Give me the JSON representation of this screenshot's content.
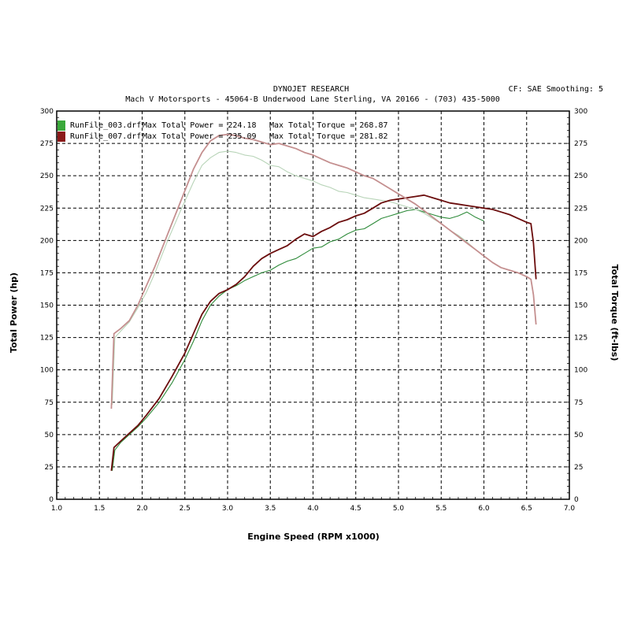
{
  "header": {
    "title": "DYNOJET RESEARCH",
    "subtitle": "Mach V Motorsports - 45064-B Underwood Lane  Sterling, VA  20166 - (703) 435-5000",
    "settings": "CF: SAE  Smoothing: 5"
  },
  "legend": [
    {
      "file": "RunFile_003.drf",
      "power_label": "Max Total Power = 224.18",
      "torque_label": "Max Total Torque = 268.87",
      "color": "#2e8b3a",
      "swatch": "#3aa83a"
    },
    {
      "file": "RunFile_007.drf",
      "power_label": "Max Total Power = 235.09",
      "torque_label": "Max Total Torque = 281.82",
      "color": "#6b0d0d",
      "swatch": "#8b1a1a"
    }
  ],
  "colors": {
    "run003_power": "#2e8b3a",
    "run003_torque": "#b8d4b8",
    "run007_power": "#6b0d0d",
    "run007_torque": "#c48f8f",
    "grid": "#000000",
    "plot_border": "#000000"
  },
  "chart_data": {
    "type": "line",
    "title": "DYNOJET RESEARCH",
    "xlabel": "Engine Speed (RPM x1000)",
    "ylabel": "Total Power (hp)",
    "y2label": "Total Torque (ft-lbs)",
    "xlim": [
      1.0,
      7.0
    ],
    "ylim": [
      0,
      300
    ],
    "y2lim": [
      0,
      300
    ],
    "x_ticks": [
      "1.0",
      "1.5",
      "2.0",
      "2.5",
      "3.0",
      "3.5",
      "4.0",
      "4.5",
      "5.0",
      "5.5",
      "6.0",
      "6.5",
      "7.0"
    ],
    "y_ticks": [
      "0",
      "25",
      "50",
      "75",
      "100",
      "125",
      "150",
      "175",
      "200",
      "225",
      "250",
      "275",
      "300"
    ],
    "grid": true,
    "legend_position": "top-left",
    "series": [
      {
        "name": "RunFile_003.drf Max Total Power = 224.18",
        "axis": "left",
        "points": [
          [
            1.65,
            22
          ],
          [
            1.68,
            38
          ],
          [
            1.75,
            44
          ],
          [
            1.85,
            50
          ],
          [
            1.95,
            56
          ],
          [
            2.05,
            63
          ],
          [
            2.2,
            75
          ],
          [
            2.35,
            90
          ],
          [
            2.5,
            108
          ],
          [
            2.6,
            122
          ],
          [
            2.7,
            138
          ],
          [
            2.8,
            150
          ],
          [
            2.9,
            157
          ],
          [
            3.0,
            162
          ],
          [
            3.1,
            165
          ],
          [
            3.2,
            169
          ],
          [
            3.3,
            172
          ],
          [
            3.4,
            175
          ],
          [
            3.5,
            177
          ],
          [
            3.6,
            181
          ],
          [
            3.7,
            184
          ],
          [
            3.8,
            186
          ],
          [
            3.9,
            190
          ],
          [
            4.0,
            194
          ],
          [
            4.1,
            195
          ],
          [
            4.2,
            199
          ],
          [
            4.3,
            201
          ],
          [
            4.4,
            205
          ],
          [
            4.5,
            208
          ],
          [
            4.6,
            209
          ],
          [
            4.7,
            213
          ],
          [
            4.8,
            217
          ],
          [
            4.9,
            219
          ],
          [
            5.0,
            221
          ],
          [
            5.1,
            223
          ],
          [
            5.2,
            224
          ],
          [
            5.3,
            222
          ],
          [
            5.4,
            220
          ],
          [
            5.5,
            218
          ],
          [
            5.6,
            217
          ],
          [
            5.7,
            219
          ],
          [
            5.8,
            222
          ],
          [
            5.9,
            218
          ],
          [
            6.0,
            215
          ]
        ]
      },
      {
        "name": "RunFile_003.drf Max Total Torque = 268.87",
        "axis": "right",
        "points": [
          [
            1.65,
            73
          ],
          [
            1.68,
            125
          ],
          [
            1.75,
            130
          ],
          [
            1.85,
            137
          ],
          [
            1.95,
            148
          ],
          [
            2.05,
            160
          ],
          [
            2.15,
            175
          ],
          [
            2.3,
            200
          ],
          [
            2.45,
            223
          ],
          [
            2.6,
            245
          ],
          [
            2.7,
            258
          ],
          [
            2.8,
            264
          ],
          [
            2.9,
            268
          ],
          [
            3.0,
            269
          ],
          [
            3.1,
            268
          ],
          [
            3.2,
            266
          ],
          [
            3.3,
            265
          ],
          [
            3.4,
            262
          ],
          [
            3.5,
            258
          ],
          [
            3.6,
            257
          ],
          [
            3.7,
            253
          ],
          [
            3.8,
            250
          ],
          [
            3.9,
            248
          ],
          [
            4.0,
            246
          ],
          [
            4.1,
            243
          ],
          [
            4.2,
            241
          ],
          [
            4.3,
            238
          ],
          [
            4.4,
            237
          ],
          [
            4.5,
            235
          ],
          [
            4.6,
            233
          ],
          [
            4.7,
            232
          ],
          [
            4.8,
            231
          ],
          [
            4.9,
            230
          ],
          [
            5.0,
            228
          ],
          [
            5.1,
            226
          ],
          [
            5.2,
            224
          ],
          [
            5.3,
            221
          ],
          [
            5.4,
            217
          ],
          [
            5.5,
            213
          ],
          [
            5.6,
            208
          ],
          [
            5.7,
            204
          ],
          [
            5.8,
            199
          ],
          [
            5.9,
            193
          ],
          [
            6.0,
            188
          ]
        ]
      },
      {
        "name": "RunFile_007.drf Max Total Power = 235.09",
        "axis": "left",
        "points": [
          [
            1.64,
            22
          ],
          [
            1.67,
            40
          ],
          [
            1.75,
            45
          ],
          [
            1.85,
            51
          ],
          [
            1.95,
            57
          ],
          [
            2.05,
            65
          ],
          [
            2.2,
            78
          ],
          [
            2.35,
            95
          ],
          [
            2.5,
            113
          ],
          [
            2.6,
            128
          ],
          [
            2.7,
            143
          ],
          [
            2.8,
            153
          ],
          [
            2.9,
            159
          ],
          [
            3.0,
            162
          ],
          [
            3.1,
            166
          ],
          [
            3.2,
            172
          ],
          [
            3.3,
            180
          ],
          [
            3.4,
            186
          ],
          [
            3.5,
            190
          ],
          [
            3.6,
            193
          ],
          [
            3.7,
            196
          ],
          [
            3.8,
            201
          ],
          [
            3.9,
            205
          ],
          [
            4.0,
            203
          ],
          [
            4.1,
            207
          ],
          [
            4.2,
            210
          ],
          [
            4.3,
            214
          ],
          [
            4.4,
            216
          ],
          [
            4.5,
            219
          ],
          [
            4.6,
            221
          ],
          [
            4.7,
            225
          ],
          [
            4.8,
            229
          ],
          [
            4.9,
            231
          ],
          [
            5.0,
            232
          ],
          [
            5.1,
            233
          ],
          [
            5.2,
            234
          ],
          [
            5.3,
            235
          ],
          [
            5.4,
            233
          ],
          [
            5.5,
            231
          ],
          [
            5.6,
            229
          ],
          [
            5.7,
            228
          ],
          [
            5.8,
            227
          ],
          [
            5.9,
            226
          ],
          [
            6.0,
            225
          ],
          [
            6.1,
            224
          ],
          [
            6.2,
            222
          ],
          [
            6.3,
            220
          ],
          [
            6.4,
            217
          ],
          [
            6.5,
            214
          ],
          [
            6.55,
            213
          ],
          [
            6.58,
            198
          ],
          [
            6.61,
            170
          ]
        ]
      },
      {
        "name": "RunFile_007.drf Max Total Torque = 281.82",
        "axis": "right",
        "points": [
          [
            1.64,
            70
          ],
          [
            1.67,
            128
          ],
          [
            1.75,
            132
          ],
          [
            1.85,
            138
          ],
          [
            1.95,
            150
          ],
          [
            2.05,
            165
          ],
          [
            2.15,
            180
          ],
          [
            2.3,
            205
          ],
          [
            2.45,
            230
          ],
          [
            2.6,
            255
          ],
          [
            2.7,
            268
          ],
          [
            2.8,
            277
          ],
          [
            2.9,
            281
          ],
          [
            3.0,
            282
          ],
          [
            3.1,
            281
          ],
          [
            3.2,
            279
          ],
          [
            3.3,
            278
          ],
          [
            3.4,
            276
          ],
          [
            3.5,
            274
          ],
          [
            3.6,
            275
          ],
          [
            3.7,
            273
          ],
          [
            3.8,
            271
          ],
          [
            3.9,
            268
          ],
          [
            4.0,
            266
          ],
          [
            4.1,
            263
          ],
          [
            4.2,
            260
          ],
          [
            4.3,
            258
          ],
          [
            4.4,
            256
          ],
          [
            4.5,
            253
          ],
          [
            4.6,
            250
          ],
          [
            4.7,
            248
          ],
          [
            4.8,
            244
          ],
          [
            4.9,
            240
          ],
          [
            5.0,
            236
          ],
          [
            5.1,
            232
          ],
          [
            5.2,
            228
          ],
          [
            5.3,
            223
          ],
          [
            5.4,
            218
          ],
          [
            5.5,
            213
          ],
          [
            5.6,
            208
          ],
          [
            5.7,
            203
          ],
          [
            5.8,
            198
          ],
          [
            5.9,
            193
          ],
          [
            6.0,
            188
          ],
          [
            6.1,
            183
          ],
          [
            6.2,
            179
          ],
          [
            6.3,
            177
          ],
          [
            6.4,
            175
          ],
          [
            6.5,
            172
          ],
          [
            6.55,
            170
          ],
          [
            6.58,
            158
          ],
          [
            6.61,
            135
          ]
        ]
      }
    ]
  }
}
